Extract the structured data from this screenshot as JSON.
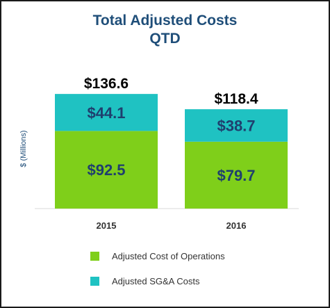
{
  "title": "Total Adjusted Costs",
  "subtitle": "QTD",
  "colors": {
    "cost_of_operations": "#7fcf1a",
    "sga": "#1fc2c2",
    "title": "#1f4e79",
    "value_text": "#1f3f6e",
    "total_text": "#000000"
  },
  "chart_data": {
    "type": "bar",
    "stacked": true,
    "title": "Total Adjusted Costs",
    "subtitle": "QTD",
    "ylabel": "$ (Millions)",
    "xlabel": "",
    "categories": [
      "2015",
      "2016"
    ],
    "series": [
      {
        "name": "Adjusted Cost of Operations",
        "values": [
          92.5,
          79.7
        ],
        "labels": [
          "$92.5",
          "$79.7"
        ]
      },
      {
        "name": "Adjusted SG&A Costs",
        "values": [
          44.1,
          38.7
        ],
        "labels": [
          "$44.1",
          "$38.7"
        ]
      }
    ],
    "totals": [
      136.6,
      118.4
    ],
    "total_labels": [
      "$136.6",
      "$118.4"
    ],
    "ylim": [
      0,
      145
    ],
    "grid": false,
    "legend_position": "bottom"
  }
}
